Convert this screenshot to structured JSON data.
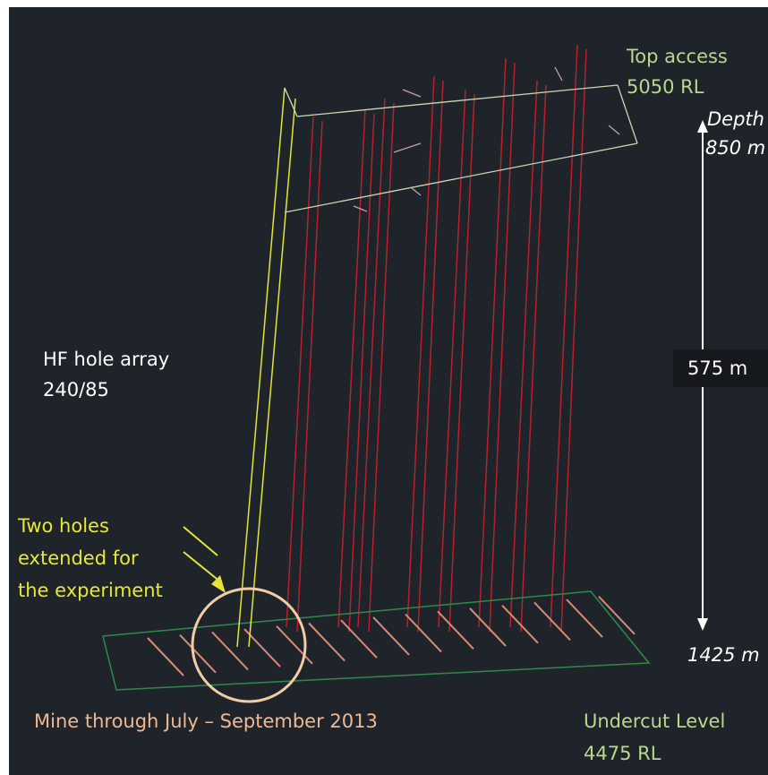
{
  "labels": {
    "top_access": "Top access",
    "top_rl": "5050 RL",
    "depth": "Depth",
    "depth_top": "850 m",
    "interval": "575 m",
    "depth_bottom": "1425 m",
    "array": "HF hole array",
    "array_orient": "240/85",
    "holes_1": "Two holes",
    "holes_2": "extended for",
    "holes_3": "the experiment",
    "mine_through": "Mine through July – September 2013",
    "undercut": "Undercut Level",
    "undercut_rl": "4475 RL"
  }
}
